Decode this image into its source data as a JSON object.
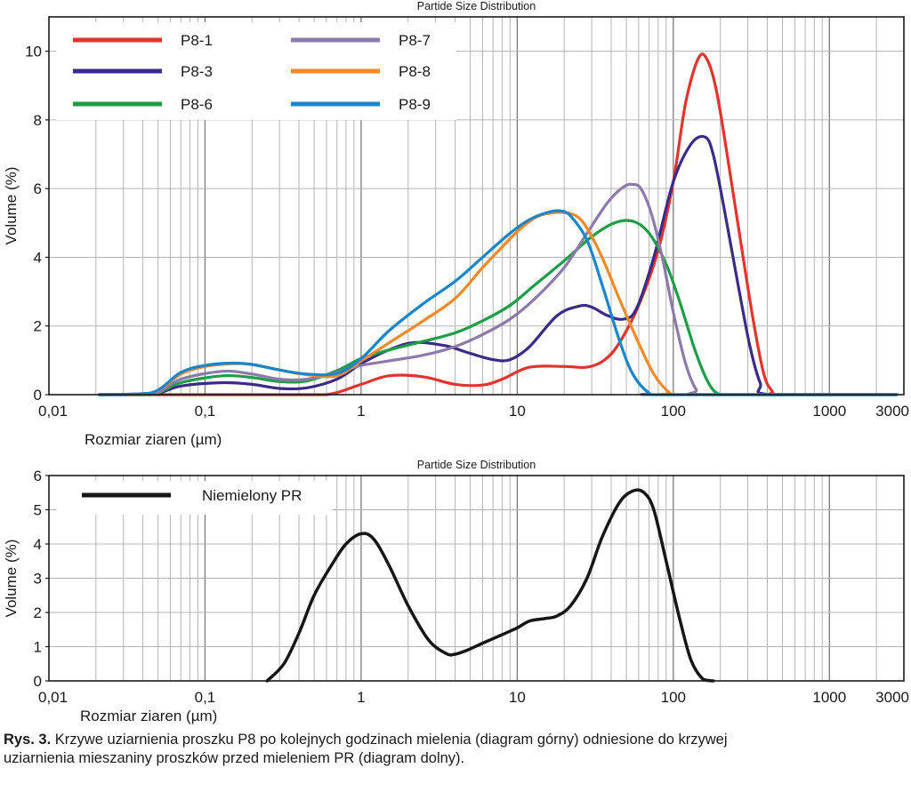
{
  "chart_data": [
    {
      "type": "line",
      "title": "Partide Size Distribution",
      "xlabel": "Rozmiar ziaren (µm)",
      "ylabel": "Volume (%)",
      "xscale": "log",
      "xlim": [
        0.01,
        3000
      ],
      "ylim": [
        0,
        11
      ],
      "xticks": [
        0.01,
        0.1,
        1,
        10,
        100,
        1000,
        3000
      ],
      "xticklabels": [
        "0,01",
        "0,1",
        "1",
        "10",
        "100",
        "1000",
        "3000"
      ],
      "yticks": [
        0,
        2,
        4,
        6,
        8,
        10
      ],
      "yticklabels": [
        "0",
        "2",
        "4",
        "6",
        "8",
        "10"
      ],
      "grid": true,
      "legend": "top-left",
      "series": [
        {
          "name": "P8-1",
          "color": "#e0342f",
          "x": [
            0.021,
            0.3,
            0.6,
            1,
            1.5,
            2.5,
            4,
            6,
            8,
            12,
            20,
            28,
            36,
            45,
            60,
            80,
            100,
            120,
            145,
            165,
            190,
            230,
            280,
            330,
            380,
            430,
            480,
            2700
          ],
          "y": [
            0,
            0,
            0,
            0.3,
            0.55,
            0.52,
            0.3,
            0.28,
            0.45,
            0.8,
            0.82,
            0.8,
            1.0,
            1.5,
            2.6,
            4.2,
            6.2,
            8.5,
            9.8,
            9.75,
            8.8,
            6.5,
            4.0,
            2.0,
            0.6,
            0.1,
            0,
            0
          ]
        },
        {
          "name": "P8-3",
          "color": "#3a2b86",
          "x": [
            0.021,
            0.045,
            0.07,
            0.13,
            0.2,
            0.3,
            0.45,
            0.7,
            1,
            1.5,
            2.2,
            3.5,
            5,
            7,
            9,
            12,
            18,
            25,
            30,
            38,
            48,
            58,
            75,
            100,
            130,
            160,
            180,
            210,
            260,
            310,
            360,
            420,
            2700
          ],
          "y": [
            0,
            0,
            0.25,
            0.35,
            0.3,
            0.18,
            0.2,
            0.45,
            0.9,
            1.3,
            1.52,
            1.42,
            1.2,
            1.02,
            1.02,
            1.4,
            2.3,
            2.58,
            2.55,
            2.3,
            2.2,
            2.5,
            4.0,
            6.2,
            7.3,
            7.5,
            7.0,
            5.5,
            3.2,
            1.4,
            0.35,
            0,
            0
          ]
        },
        {
          "name": "P8-6",
          "color": "#1f9c48",
          "x": [
            0.021,
            0.045,
            0.07,
            0.13,
            0.2,
            0.3,
            0.45,
            0.7,
            1,
            1.5,
            2.5,
            4,
            6,
            9,
            13,
            20,
            30,
            42,
            55,
            70,
            90,
            110,
            140,
            170,
            200,
            250,
            2700
          ],
          "y": [
            0,
            0,
            0.35,
            0.55,
            0.5,
            0.38,
            0.4,
            0.7,
            1.05,
            1.3,
            1.55,
            1.8,
            2.15,
            2.6,
            3.2,
            3.9,
            4.6,
            5.0,
            5.05,
            4.7,
            3.8,
            2.7,
            1.2,
            0.3,
            0,
            0,
            0
          ]
        },
        {
          "name": "P8-7",
          "color": "#8c7aa9",
          "x": [
            0.021,
            0.045,
            0.07,
            0.13,
            0.2,
            0.3,
            0.45,
            0.7,
            1,
            1.5,
            2.5,
            4,
            6,
            9,
            13,
            20,
            28,
            38,
            48,
            55,
            62,
            72,
            85,
            100,
            120,
            140,
            160,
            2700
          ],
          "y": [
            0,
            0,
            0.45,
            0.68,
            0.6,
            0.45,
            0.45,
            0.65,
            0.85,
            0.98,
            1.15,
            1.4,
            1.75,
            2.2,
            2.8,
            3.7,
            4.7,
            5.6,
            6.05,
            6.12,
            6.0,
            5.3,
            4.0,
            2.4,
            0.9,
            0.15,
            0,
            0
          ]
        },
        {
          "name": "P8-8",
          "color": "#f08a2c",
          "x": [
            0.021,
            0.045,
            0.07,
            0.1,
            0.15,
            0.2,
            0.3,
            0.45,
            0.7,
            1,
            1.5,
            2.5,
            4,
            6,
            8,
            10,
            13,
            16,
            20,
            24,
            28,
            35,
            45,
            60,
            75,
            95,
            110,
            2700
          ],
          "y": [
            0,
            0.05,
            0.6,
            0.82,
            0.9,
            0.88,
            0.72,
            0.58,
            0.55,
            0.98,
            1.5,
            2.15,
            2.8,
            3.7,
            4.3,
            4.75,
            5.15,
            5.28,
            5.3,
            5.2,
            4.85,
            4.0,
            2.8,
            1.5,
            0.6,
            0.05,
            0,
            0
          ]
        },
        {
          "name": "P8-9",
          "color": "#1a85c8",
          "x": [
            0.021,
            0.045,
            0.07,
            0.1,
            0.15,
            0.2,
            0.3,
            0.45,
            0.7,
            1,
            1.5,
            2.5,
            4,
            6,
            9,
            12,
            16,
            19,
            22,
            28,
            35,
            45,
            55,
            70,
            85,
            2700
          ],
          "y": [
            0,
            0.05,
            0.65,
            0.85,
            0.92,
            0.88,
            0.72,
            0.6,
            0.62,
            1.05,
            1.85,
            2.65,
            3.3,
            4.0,
            4.7,
            5.1,
            5.32,
            5.35,
            5.2,
            4.5,
            3.2,
            1.6,
            0.6,
            0.05,
            0,
            0
          ]
        }
      ]
    },
    {
      "type": "line",
      "title": "Partide Size Distribution",
      "xlabel": "Rozmiar ziaren (µm)",
      "ylabel": "Volume (%)",
      "xscale": "log",
      "xlim": [
        0.01,
        3000
      ],
      "ylim": [
        0,
        6
      ],
      "xticks": [
        0.01,
        0.1,
        1,
        10,
        100,
        1000,
        3000
      ],
      "xticklabels": [
        "0,01",
        "0,1",
        "1",
        "10",
        "100",
        "1000",
        "3000"
      ],
      "yticks": [
        0,
        1,
        2,
        3,
        4,
        5,
        6
      ],
      "yticklabels": [
        "0",
        "1",
        "2",
        "3",
        "4",
        "5",
        "6"
      ],
      "grid": true,
      "legend": "top-left",
      "series": [
        {
          "name": "Niemielony PR",
          "color": "#161616",
          "x": [
            0.25,
            0.32,
            0.4,
            0.5,
            0.65,
            0.8,
            1.0,
            1.2,
            1.5,
            2.0,
            2.7,
            3.5,
            4.0,
            4.8,
            6,
            8,
            10,
            12,
            15,
            18,
            22,
            28,
            35,
            45,
            55,
            65,
            75,
            90,
            110,
            130,
            155,
            180
          ],
          "y": [
            0,
            0.5,
            1.4,
            2.5,
            3.4,
            4.0,
            4.3,
            4.15,
            3.4,
            2.2,
            1.2,
            0.8,
            0.78,
            0.9,
            1.1,
            1.35,
            1.55,
            1.75,
            1.82,
            1.9,
            2.2,
            3.0,
            4.2,
            5.2,
            5.55,
            5.5,
            5.0,
            3.5,
            1.8,
            0.6,
            0.05,
            0
          ]
        }
      ]
    }
  ],
  "caption": {
    "label": "Rys. 3.",
    "text_line1": "Krzywe uziarnienia proszku P8 po kolejnych godzinach mielenia (diagram górny) odniesione do krzywej",
    "text_line2": "uziarnienia mieszaniny proszków przed mieleniem PR (diagram dolny)."
  }
}
